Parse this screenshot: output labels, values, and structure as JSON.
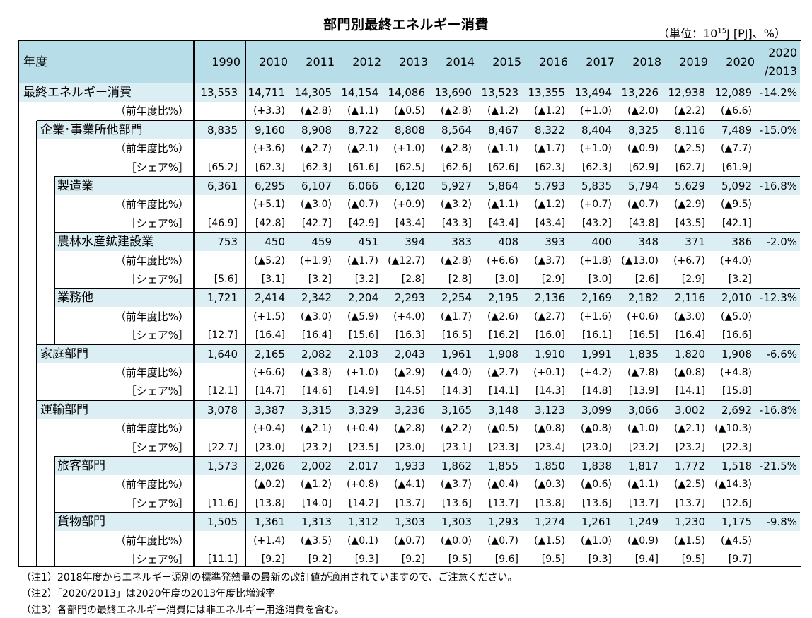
{
  "title": "部門別最終エネルギー消費",
  "unit": {
    "prefix": "（単位：10",
    "sup": "15",
    "suffix": "J [PJ]、%）"
  },
  "header": {
    "label": "年度",
    "years": [
      "1990",
      "2010",
      "2011",
      "2012",
      "2013",
      "2014",
      "2015",
      "2016",
      "2017",
      "2018",
      "2019",
      "2020"
    ],
    "last_line1": "2020",
    "last_line2": "/2013"
  },
  "rows": [
    {
      "label": "最終エネルギー消費",
      "level": 0,
      "values": [
        "13,553",
        "14,711",
        "14,305",
        "14,154",
        "14,086",
        "13,690",
        "13,523",
        "13,355",
        "13,494",
        "13,226",
        "12,938",
        "12,089"
      ],
      "change": "-14.2%",
      "yoy": [
        "",
        "(+3.3)",
        "(▲2.8)",
        "(▲1.1)",
        "(▲0.5)",
        "(▲2.8)",
        "(▲1.2)",
        "(▲1.2)",
        "(+1.0)",
        "(▲2.0)",
        "(▲2.2)",
        "(▲6.6)"
      ]
    },
    {
      "label": "企業･事業所他部門",
      "level": 1,
      "values": [
        "8,835",
        "9,160",
        "8,908",
        "8,722",
        "8,808",
        "8,564",
        "8,467",
        "8,322",
        "8,404",
        "8,325",
        "8,116",
        "7,489"
      ],
      "change": "-15.0%",
      "yoy": [
        "",
        "(+3.6)",
        "(▲2.7)",
        "(▲2.1)",
        "(+1.0)",
        "(▲2.8)",
        "(▲1.1)",
        "(▲1.7)",
        "(+1.0)",
        "(▲0.9)",
        "(▲2.5)",
        "(▲7.7)"
      ],
      "share": [
        "[65.2]",
        "[62.3]",
        "[62.3]",
        "[61.6]",
        "[62.5]",
        "[62.6]",
        "[62.6]",
        "[62.3]",
        "[62.3]",
        "[62.9]",
        "[62.7]",
        "[61.9]"
      ]
    },
    {
      "label": "製造業",
      "level": 2,
      "values": [
        "6,361",
        "6,295",
        "6,107",
        "6,066",
        "6,120",
        "5,927",
        "5,864",
        "5,793",
        "5,835",
        "5,794",
        "5,629",
        "5,092"
      ],
      "change": "-16.8%",
      "yoy": [
        "",
        "(+5.1)",
        "(▲3.0)",
        "(▲0.7)",
        "(+0.9)",
        "(▲3.2)",
        "(▲1.1)",
        "(▲1.2)",
        "(+0.7)",
        "(▲0.7)",
        "(▲2.9)",
        "(▲9.5)"
      ],
      "share": [
        "[46.9]",
        "[42.8]",
        "[42.7]",
        "[42.9]",
        "[43.4]",
        "[43.3]",
        "[43.4]",
        "[43.4]",
        "[43.2]",
        "[43.8]",
        "[43.5]",
        "[42.1]"
      ]
    },
    {
      "label": "農林水産鉱建設業",
      "level": 2,
      "values": [
        "753",
        "450",
        "459",
        "451",
        "394",
        "383",
        "408",
        "393",
        "400",
        "348",
        "371",
        "386"
      ],
      "change": "-2.0%",
      "yoy": [
        "",
        "(▲5.2)",
        "(+1.9)",
        "(▲1.7)",
        "(▲12.7)",
        "(▲2.8)",
        "(+6.6)",
        "(▲3.7)",
        "(+1.8)",
        "(▲13.0)",
        "(+6.7)",
        "(+4.0)"
      ],
      "share": [
        "[5.6]",
        "[3.1]",
        "[3.2]",
        "[3.2]",
        "[2.8]",
        "[2.8]",
        "[3.0]",
        "[2.9]",
        "[3.0]",
        "[2.6]",
        "[2.9]",
        "[3.2]"
      ]
    },
    {
      "label": "業務他",
      "level": 2,
      "values": [
        "1,721",
        "2,414",
        "2,342",
        "2,204",
        "2,293",
        "2,254",
        "2,195",
        "2,136",
        "2,169",
        "2,182",
        "2,116",
        "2,010"
      ],
      "change": "-12.3%",
      "yoy": [
        "",
        "(+1.5)",
        "(▲3.0)",
        "(▲5.9)",
        "(+4.0)",
        "(▲1.7)",
        "(▲2.6)",
        "(▲2.7)",
        "(+1.6)",
        "(+0.6)",
        "(▲3.0)",
        "(▲5.0)"
      ],
      "share": [
        "[12.7]",
        "[16.4]",
        "[16.4]",
        "[15.6]",
        "[16.3]",
        "[16.5]",
        "[16.2]",
        "[16.0]",
        "[16.1]",
        "[16.5]",
        "[16.4]",
        "[16.6]"
      ]
    },
    {
      "label": "家庭部門",
      "level": 1,
      "values": [
        "1,640",
        "2,165",
        "2,082",
        "2,103",
        "2,043",
        "1,961",
        "1,908",
        "1,910",
        "1,991",
        "1,835",
        "1,820",
        "1,908"
      ],
      "change": "-6.6%",
      "yoy": [
        "",
        "(+6.6)",
        "(▲3.8)",
        "(+1.0)",
        "(▲2.9)",
        "(▲4.0)",
        "(▲2.7)",
        "(+0.1)",
        "(+4.2)",
        "(▲7.8)",
        "(▲0.8)",
        "(+4.8)"
      ],
      "share": [
        "[12.1]",
        "[14.7]",
        "[14.6]",
        "[14.9]",
        "[14.5]",
        "[14.3]",
        "[14.1]",
        "[14.3]",
        "[14.8]",
        "[13.9]",
        "[14.1]",
        "[15.8]"
      ]
    },
    {
      "label": "運輸部門",
      "level": 1,
      "values": [
        "3,078",
        "3,387",
        "3,315",
        "3,329",
        "3,236",
        "3,165",
        "3,148",
        "3,123",
        "3,099",
        "3,066",
        "3,002",
        "2,692"
      ],
      "change": "-16.8%",
      "yoy": [
        "",
        "(+0.4)",
        "(▲2.1)",
        "(+0.4)",
        "(▲2.8)",
        "(▲2.2)",
        "(▲0.5)",
        "(▲0.8)",
        "(▲0.8)",
        "(▲1.0)",
        "(▲2.1)",
        "(▲10.3)"
      ],
      "share": [
        "[22.7]",
        "[23.0]",
        "[23.2]",
        "[23.5]",
        "[23.0]",
        "[23.1]",
        "[23.3]",
        "[23.4]",
        "[23.0]",
        "[23.2]",
        "[23.2]",
        "[22.3]"
      ]
    },
    {
      "label": "旅客部門",
      "level": 2,
      "values": [
        "1,573",
        "2,026",
        "2,002",
        "2,017",
        "1,933",
        "1,862",
        "1,855",
        "1,850",
        "1,838",
        "1,817",
        "1,772",
        "1,518"
      ],
      "change": "-21.5%",
      "yoy": [
        "",
        "(▲0.2)",
        "(▲1.2)",
        "(+0.8)",
        "(▲4.1)",
        "(▲3.7)",
        "(▲0.4)",
        "(▲0.3)",
        "(▲0.6)",
        "(▲1.1)",
        "(▲2.5)",
        "(▲14.3)"
      ],
      "share": [
        "[11.6]",
        "[13.8]",
        "[14.0]",
        "[14.2]",
        "[13.7]",
        "[13.6]",
        "[13.7]",
        "[13.8]",
        "[13.6]",
        "[13.7]",
        "[13.7]",
        "[12.6]"
      ]
    },
    {
      "label": "貨物部門",
      "level": 2,
      "values": [
        "1,505",
        "1,361",
        "1,313",
        "1,312",
        "1,303",
        "1,303",
        "1,293",
        "1,274",
        "1,261",
        "1,249",
        "1,230",
        "1,175"
      ],
      "change": "-9.8%",
      "yoy": [
        "",
        "(+1.4)",
        "(▲3.5)",
        "(▲0.1)",
        "(▲0.7)",
        "(▲0.0)",
        "(▲0.7)",
        "(▲1.5)",
        "(▲1.0)",
        "(▲0.9)",
        "(▲1.5)",
        "(▲4.5)"
      ],
      "share": [
        "[11.1]",
        "[9.2]",
        "[9.2]",
        "[9.3]",
        "[9.2]",
        "[9.5]",
        "[9.6]",
        "[9.5]",
        "[9.3]",
        "[9.4]",
        "[9.5]",
        "[9.7]"
      ]
    }
  ],
  "sublabels": {
    "yoy": "（前年度比%）",
    "share": "［シェア%］"
  },
  "notes": [
    "（注1）2018年度からエネルギー源別の標準発熱量の最新の改訂値が適用されていますので、ご注意ください。",
    "（注2）「2020/2013」は2020年度の2013年度比増減率",
    "（注3）各部門の最終エネルギー消費には非エネルギー用途消費を含む。"
  ]
}
